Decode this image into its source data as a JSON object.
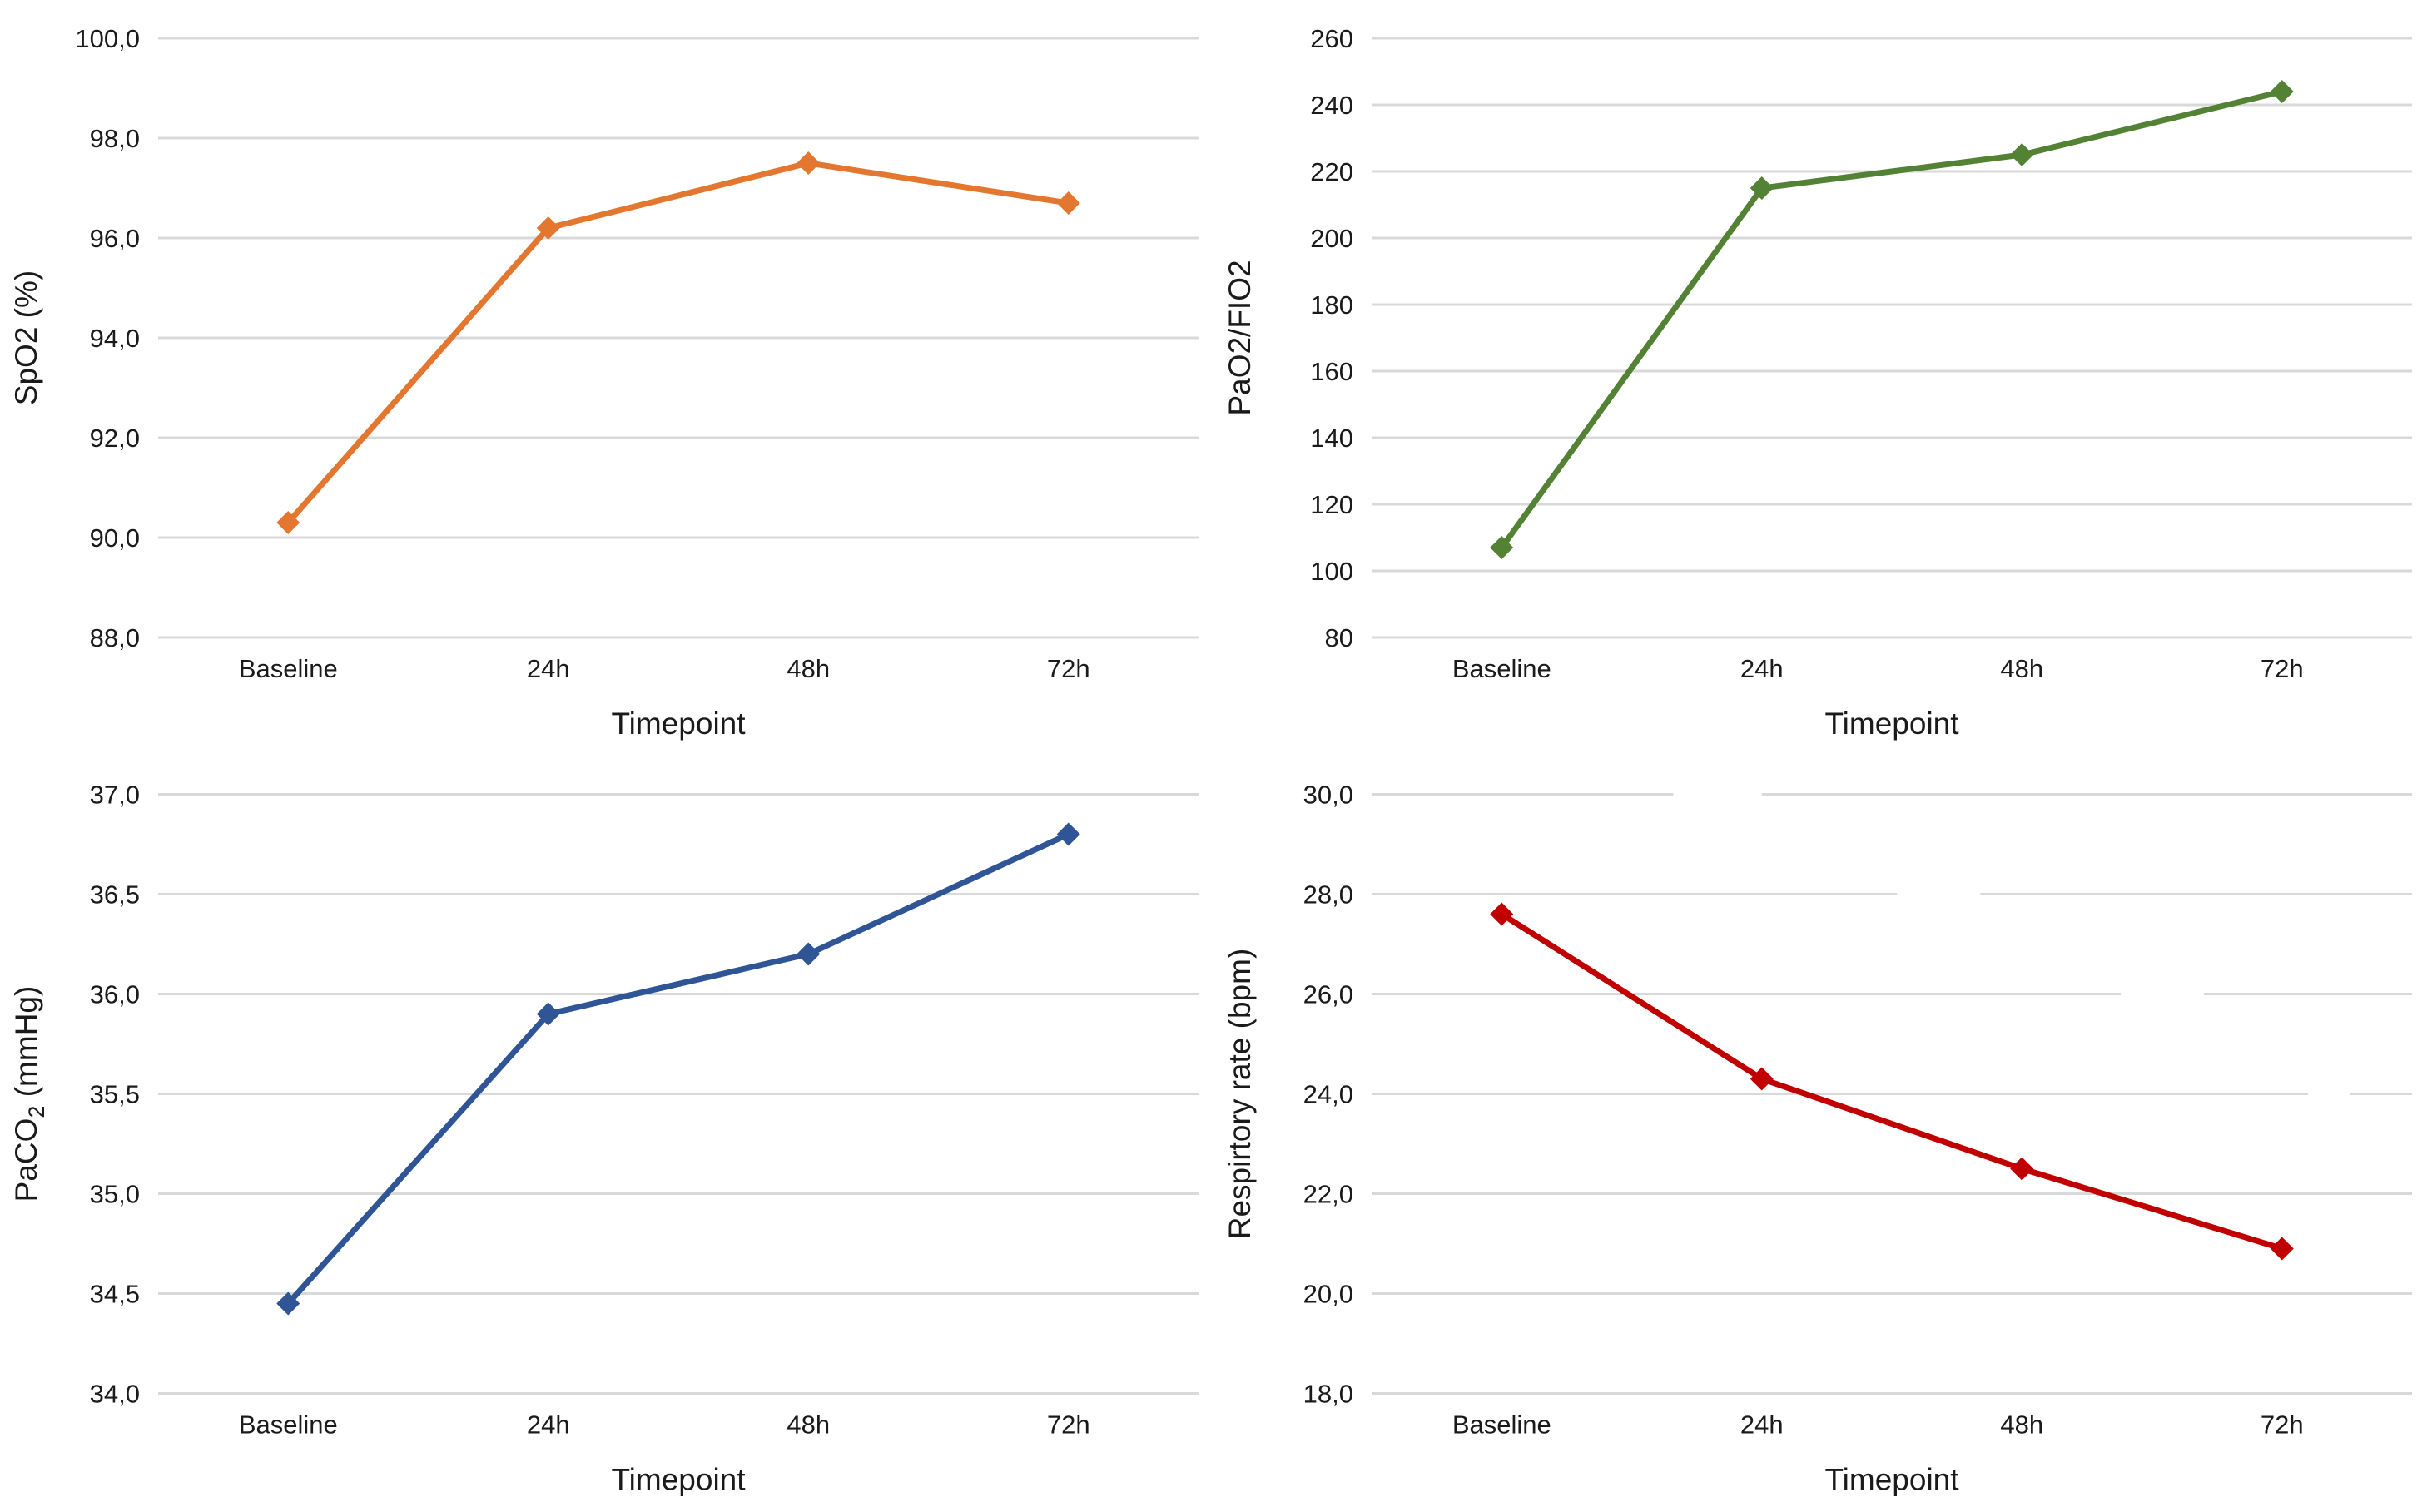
{
  "figure": {
    "background": "#FFFFFF",
    "gridline_color": "#D9D9D9",
    "text_color": "#1a1a1a",
    "layout": "2x2 grid of line charts, no titles, no legends"
  },
  "chart_data": [
    {
      "id": "spo2",
      "type": "line",
      "position": "top-left",
      "ylabel": "SpO2 (%)",
      "ylabel_parts": [
        {
          "t": "SpO2 (%)"
        }
      ],
      "xlabel": "Timepoint",
      "categories": [
        "Baseline",
        "24h",
        "48h",
        "72h"
      ],
      "values": [
        90.3,
        96.2,
        97.5,
        96.7
      ],
      "ylim": [
        88,
        100
      ],
      "ytick_values": [
        100,
        98,
        96,
        94,
        92,
        90,
        88
      ],
      "ytick_labels": [
        "100,0",
        "98,0",
        "96,0",
        "94,0",
        "92,0",
        "90,0",
        "88,0"
      ],
      "color": "#E4772F",
      "marker": "diamond",
      "grid": true,
      "legend": "none"
    },
    {
      "id": "pao2fio2",
      "type": "line",
      "position": "top-right",
      "ylabel": "PaO2/FIO2",
      "ylabel_parts": [
        {
          "t": "PaO2/FIO2"
        }
      ],
      "xlabel": "Timepoint",
      "categories": [
        "Baseline",
        "24h",
        "48h",
        "72h"
      ],
      "values": [
        107,
        215,
        225,
        244
      ],
      "ylim": [
        80,
        260
      ],
      "ytick_values": [
        260,
        240,
        220,
        200,
        180,
        160,
        140,
        120,
        100,
        80
      ],
      "ytick_labels": [
        "260",
        "240",
        "220",
        "200",
        "180",
        "160",
        "140",
        "120",
        "100",
        "80"
      ],
      "color": "#548235",
      "marker": "diamond",
      "grid": true,
      "legend": "none"
    },
    {
      "id": "paco2",
      "type": "line",
      "position": "bottom-left",
      "ylabel": "PaCO2 (mmHg)",
      "ylabel_parts": [
        {
          "t": "PaCO"
        },
        {
          "t": "2",
          "sub": true
        },
        {
          "t": " (mmHg)"
        }
      ],
      "xlabel": "Timepoint",
      "categories": [
        "Baseline",
        "24h",
        "48h",
        "72h"
      ],
      "values": [
        34.45,
        35.9,
        36.2,
        36.8
      ],
      "ylim": [
        34,
        37
      ],
      "ytick_values": [
        37,
        36.5,
        36,
        35.5,
        35,
        34.5,
        34
      ],
      "ytick_labels": [
        "37,0",
        "36,5",
        "36,0",
        "35,5",
        "35,0",
        "34,5",
        "34,0"
      ],
      "color": "#2F5597",
      "marker": "diamond",
      "grid": true,
      "legend": "none"
    },
    {
      "id": "resprate",
      "type": "line",
      "position": "bottom-right",
      "ylabel": "Respirtory rate (bpm)",
      "ylabel_parts": [
        {
          "t": "Respirtory rate (bpm)"
        }
      ],
      "xlabel": "Timepoint",
      "categories": [
        "Baseline",
        "24h",
        "48h",
        "72h"
      ],
      "values": [
        27.6,
        24.3,
        22.5,
        20.9
      ],
      "ylim": [
        18,
        30
      ],
      "ytick_values": [
        30,
        28,
        26,
        24,
        22,
        20,
        18
      ],
      "ytick_labels": [
        "30,0",
        "28,0",
        "26,0",
        "24,0",
        "22,0",
        "20,0",
        "18,0"
      ],
      "color": "#C00000",
      "marker": "diamond",
      "grid": true,
      "gridline_gaps": [
        {
          "value": 30,
          "from": 0.29,
          "to": 0.375
        },
        {
          "value": 28,
          "from": 0.505,
          "to": 0.585
        },
        {
          "value": 26,
          "from": 0.72,
          "to": 0.8
        },
        {
          "value": 24,
          "from": 0.9,
          "to": 0.94
        }
      ],
      "legend": "none"
    }
  ]
}
